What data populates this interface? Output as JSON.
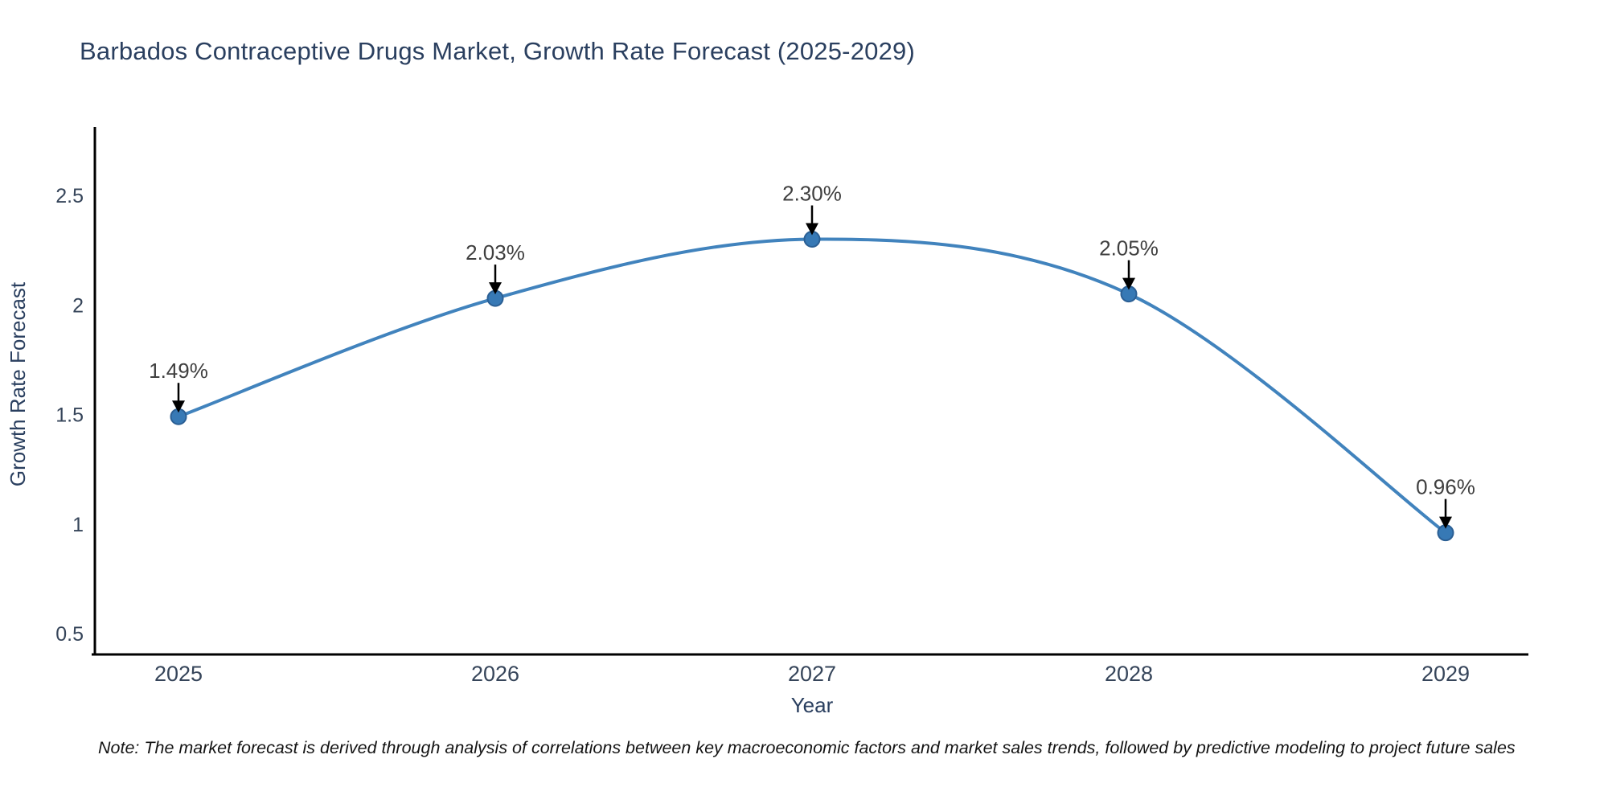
{
  "title": "Barbados Contraceptive Drugs Market, Growth Rate Forecast (2025-2029)",
  "note": "Note: The market forecast is derived through analysis of correlations between key macroeconomic factors and market sales trends, followed by predictive modeling to project future sales",
  "chart_data": {
    "type": "line",
    "title": "Barbados Contraceptive Drugs Market, Growth Rate Forecast (2025-2029)",
    "xlabel": "Year",
    "ylabel": "Growth Rate Forecast",
    "x": [
      2025,
      2026,
      2027,
      2028,
      2029
    ],
    "series": [
      {
        "name": "Growth Rate Forecast",
        "values": [
          1.49,
          2.03,
          2.3,
          2.05,
          0.96
        ]
      }
    ],
    "point_labels": [
      "1.49%",
      "2.03%",
      "2.30%",
      "2.05%",
      "0.96%"
    ],
    "xticks": [
      "2025",
      "2026",
      "2027",
      "2028",
      "2029"
    ],
    "yticks": [
      "0.5",
      "1",
      "1.5",
      "2",
      "2.5"
    ],
    "ytick_values": [
      0.5,
      1,
      1.5,
      2,
      2.5
    ],
    "ylim": [
      0.4,
      2.8
    ],
    "xlim": [
      2024.7,
      2029.3
    ],
    "line_shape": "spline",
    "grid": false,
    "legend": "none",
    "colors": {
      "line": "#4183bd",
      "marker_fill": "#3779b5",
      "marker_edge": "#2b5f94",
      "axis_line": "#000000",
      "tick_label": "#36455a",
      "axis_title": "#2a3f5f",
      "annotation_text": "#3f3f3f",
      "annotation_arrow": "#000000",
      "background": "#ffffff"
    }
  }
}
